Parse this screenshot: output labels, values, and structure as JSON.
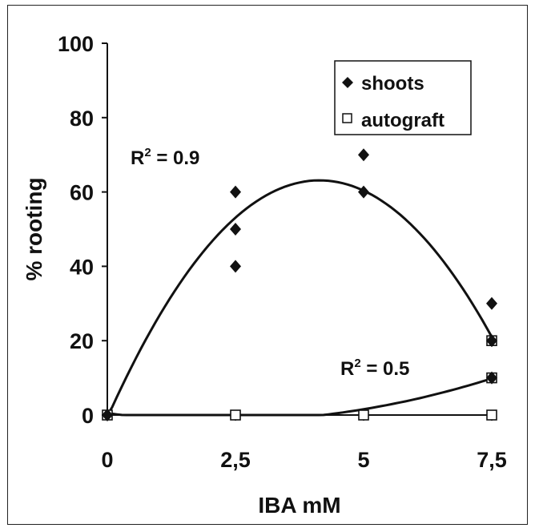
{
  "chart_data": {
    "type": "scatter",
    "title": "",
    "xlabel": "IBA mM",
    "ylabel": "% rooting",
    "xlim": [
      0,
      7.5
    ],
    "ylim": [
      0,
      100
    ],
    "x_ticks": [
      {
        "value": 0,
        "label": "0"
      },
      {
        "value": 2.5,
        "label": "2,5"
      },
      {
        "value": 5,
        "label": "5"
      },
      {
        "value": 7.5,
        "label": "7,5"
      }
    ],
    "y_ticks": [
      {
        "value": 0,
        "label": "0"
      },
      {
        "value": 20,
        "label": "20"
      },
      {
        "value": 40,
        "label": "40"
      },
      {
        "value": 60,
        "label": "60"
      },
      {
        "value": 80,
        "label": "80"
      },
      {
        "value": 100,
        "label": "100"
      }
    ],
    "grid": false,
    "legend_position": "top-right",
    "series": [
      {
        "name": "shoots",
        "marker": "filled-diamond",
        "color": "#111111",
        "points": [
          {
            "x": 0,
            "y": 0
          },
          {
            "x": 2.5,
            "y": 60
          },
          {
            "x": 2.5,
            "y": 50
          },
          {
            "x": 2.5,
            "y": 40
          },
          {
            "x": 5,
            "y": 70
          },
          {
            "x": 5,
            "y": 60
          },
          {
            "x": 7.5,
            "y": 30
          },
          {
            "x": 7.5,
            "y": 20
          },
          {
            "x": 7.5,
            "y": 10
          }
        ],
        "trendline": {
          "label_prefix": "R",
          "label_sup": "2",
          "label_rest": " = 0.9"
        }
      },
      {
        "name": "autograft",
        "marker": "open-square",
        "color": "#111111",
        "points": [
          {
            "x": 0,
            "y": 0
          },
          {
            "x": 2.5,
            "y": 0
          },
          {
            "x": 5,
            "y": 0
          },
          {
            "x": 7.5,
            "y": 0
          },
          {
            "x": 7.5,
            "y": 10
          },
          {
            "x": 7.5,
            "y": 20
          }
        ],
        "trendline": {
          "label_prefix": "R",
          "label_sup": "2",
          "label_rest": " = 0.5"
        }
      }
    ]
  }
}
